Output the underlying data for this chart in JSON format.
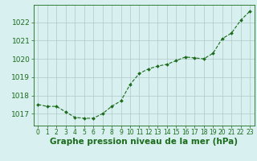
{
  "hours": [
    0,
    1,
    2,
    3,
    4,
    5,
    6,
    7,
    8,
    9,
    10,
    11,
    12,
    13,
    14,
    15,
    16,
    17,
    18,
    19,
    20,
    21,
    22,
    23
  ],
  "pressure": [
    1017.5,
    1017.4,
    1017.4,
    1017.1,
    1016.8,
    1016.75,
    1016.75,
    1017.0,
    1017.4,
    1017.7,
    1018.6,
    1019.2,
    1019.45,
    1019.6,
    1019.7,
    1019.9,
    1020.1,
    1020.05,
    1020.0,
    1020.3,
    1021.1,
    1021.4,
    1022.1,
    1022.6
  ],
  "line_color": "#1a6b1a",
  "marker": "D",
  "marker_size": 2.0,
  "background_color": "#d8f0f0",
  "grid_color": "#b0c8c8",
  "ylabel_values": [
    1017,
    1018,
    1019,
    1020,
    1021,
    1022
  ],
  "ylim": [
    1016.35,
    1022.95
  ],
  "xlim": [
    -0.5,
    23.5
  ],
  "xlabel": "Graphe pression niveau de la mer (hPa)",
  "xlabel_fontsize": 7.5,
  "ytick_fontsize": 6.5,
  "xtick_fontsize": 5.5,
  "label_color": "#1a6b1a",
  "linewidth": 0.8
}
